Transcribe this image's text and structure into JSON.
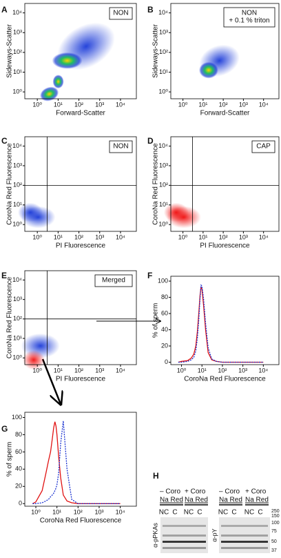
{
  "chart_data": [
    {
      "type": "scatter",
      "label": "A",
      "annotation": [
        "NON"
      ],
      "xlabel": "Forward-Scatter",
      "ylabel": "Sideways-Scatter",
      "log": true,
      "xlim": [
        0.25,
        58000
      ],
      "ylim": [
        0.45,
        30000
      ],
      "xticks": [
        {
          "value": 1,
          "label": "10⁰"
        },
        {
          "value": 10,
          "label": "10¹"
        },
        {
          "value": 100,
          "label": "10²"
        },
        {
          "value": 1000,
          "label": "10³"
        },
        {
          "value": 10000,
          "label": "10⁴"
        }
      ],
      "yticks": [
        {
          "value": 1,
          "label": "10⁰"
        },
        {
          "value": 10,
          "label": "10¹"
        },
        {
          "value": 100,
          "label": "10²"
        },
        {
          "value": 1000,
          "label": "10³"
        },
        {
          "value": 10000,
          "label": "10⁴"
        }
      ]
    },
    {
      "type": "scatter",
      "label": "B",
      "annotation": [
        "NON",
        "+ 0.1 % triton"
      ],
      "xlabel": "Forward-Scatter",
      "ylabel": "Sideways-Scatter",
      "log": true,
      "xlim": [
        0.25,
        58000
      ],
      "ylim": [
        0.45,
        30000
      ],
      "xticks": [
        {
          "value": 1,
          "label": "10⁰"
        },
        {
          "value": 10,
          "label": "10¹"
        },
        {
          "value": 100,
          "label": "10²"
        },
        {
          "value": 1000,
          "label": "10³"
        },
        {
          "value": 10000,
          "label": "10⁴"
        }
      ],
      "yticks": [
        {
          "value": 1,
          "label": "10⁰"
        },
        {
          "value": 10,
          "label": "10¹"
        },
        {
          "value": 100,
          "label": "10²"
        },
        {
          "value": 1000,
          "label": "10³"
        },
        {
          "value": 10000,
          "label": "10⁴"
        }
      ]
    },
    {
      "type": "scatter",
      "label": "C",
      "annotation": [
        "NON"
      ],
      "xlabel": "PI Fluorescence",
      "ylabel": "CoroNa Red Fluorescence",
      "log": true,
      "gates": [
        3,
        100
      ],
      "xlim": [
        0.25,
        58000
      ],
      "ylim": [
        0.45,
        30000
      ],
      "xticks": [
        {
          "value": 1,
          "label": "10⁰"
        },
        {
          "value": 10,
          "label": "10¹"
        },
        {
          "value": 100,
          "label": "10²"
        },
        {
          "value": 1000,
          "label": "10³"
        },
        {
          "value": 10000,
          "label": "10⁴"
        }
      ],
      "yticks": [
        {
          "value": 1,
          "label": "10⁰"
        },
        {
          "value": 10,
          "label": "10¹"
        },
        {
          "value": 100,
          "label": "10²"
        },
        {
          "value": 1000,
          "label": "10³"
        },
        {
          "value": 10000,
          "label": "10⁴"
        }
      ]
    },
    {
      "type": "scatter",
      "label": "D",
      "annotation": [
        "CAP"
      ],
      "xlabel": "PI Fluorescence",
      "ylabel": "CoroNa Red Fluorescence",
      "log": true,
      "gates": [
        3,
        100
      ],
      "xlim": [
        0.25,
        58000
      ],
      "ylim": [
        0.45,
        30000
      ],
      "xticks": [
        {
          "value": 1,
          "label": "10⁰"
        },
        {
          "value": 10,
          "label": "10¹"
        },
        {
          "value": 100,
          "label": "10²"
        },
        {
          "value": 1000,
          "label": "10³"
        },
        {
          "value": 10000,
          "label": "10⁴"
        }
      ],
      "yticks": [
        {
          "value": 1,
          "label": "10⁰"
        },
        {
          "value": 10,
          "label": "10¹"
        },
        {
          "value": 100,
          "label": "10²"
        },
        {
          "value": 1000,
          "label": "10³"
        },
        {
          "value": 10000,
          "label": "10⁴"
        }
      ]
    },
    {
      "type": "scatter",
      "label": "E",
      "annotation": [
        "Merged"
      ],
      "xlabel": "PI Fluorescence",
      "ylabel": "CoroNa Red Fluorescence",
      "log": true,
      "gates": [
        3,
        100
      ],
      "xlim": [
        0.25,
        58000
      ],
      "ylim": [
        0.45,
        30000
      ],
      "xticks": [
        {
          "value": 1,
          "label": "10⁰"
        },
        {
          "value": 10,
          "label": "10¹"
        },
        {
          "value": 100,
          "label": "10²"
        },
        {
          "value": 1000,
          "label": "10³"
        },
        {
          "value": 10000,
          "label": "10⁴"
        }
      ],
      "yticks": [
        {
          "value": 1,
          "label": "10⁰"
        },
        {
          "value": 10,
          "label": "10¹"
        },
        {
          "value": 100,
          "label": "10²"
        },
        {
          "value": 1000,
          "label": "10³"
        },
        {
          "value": 10000,
          "label": "10⁴"
        }
      ]
    },
    {
      "type": "line",
      "label": "F",
      "xlabel": "CoroNa Red Fluorescence",
      "ylabel": "% of sperm",
      "log": true,
      "xlim": [
        0.3,
        58000
      ],
      "ylim": [
        -3,
        106
      ],
      "xticks": [
        {
          "value": 1,
          "label": "10⁰"
        },
        {
          "value": 10,
          "label": "10¹"
        },
        {
          "value": 100,
          "label": "10²"
        },
        {
          "value": 1000,
          "label": "10³"
        },
        {
          "value": 10000,
          "label": "10⁴"
        }
      ],
      "yticks": [
        0,
        20,
        40,
        60,
        80,
        100
      ],
      "x": [
        0.7,
        1,
        2,
        3,
        4,
        5,
        6,
        7,
        8,
        9,
        10,
        12,
        15,
        20,
        30,
        50,
        100,
        1000,
        10000
      ],
      "series": [
        {
          "color": "#e01010",
          "style": "solid",
          "values": [
            0,
            1,
            2,
            5,
            10,
            20,
            38,
            60,
            82,
            93,
            90,
            70,
            40,
            12,
            3,
            1,
            0,
            0,
            0
          ]
        },
        {
          "color": "#1830d0",
          "style": "dotted",
          "values": [
            0,
            0,
            1,
            3,
            6,
            14,
            30,
            52,
            78,
            95,
            94,
            78,
            48,
            18,
            4,
            1,
            0,
            0,
            0
          ]
        }
      ]
    },
    {
      "type": "line",
      "label": "G",
      "xlabel": "CoroNa Red Fluorescence",
      "ylabel": "% of sperm",
      "log": true,
      "xlim": [
        0.3,
        58000
      ],
      "ylim": [
        -3,
        106
      ],
      "xticks": [
        {
          "value": 1,
          "label": "10⁰"
        },
        {
          "value": 10,
          "label": "10¹"
        },
        {
          "value": 100,
          "label": "10²"
        },
        {
          "value": 1000,
          "label": "10³"
        },
        {
          "value": 10000,
          "label": "10⁴"
        }
      ],
      "yticks": [
        0,
        20,
        40,
        60,
        80,
        100
      ],
      "x": [
        0.7,
        1,
        2,
        3,
        4,
        5,
        6,
        7,
        8,
        9,
        10,
        12,
        15,
        20,
        30,
        50,
        100,
        1000,
        10000
      ],
      "series": [
        {
          "color": "#e01010",
          "style": "solid",
          "values": [
            0,
            2,
            15,
            35,
            50,
            60,
            75,
            88,
            95,
            90,
            80,
            55,
            30,
            10,
            3,
            1,
            0,
            0,
            0
          ]
        },
        {
          "color": "#1830d0",
          "style": "dotted",
          "values": [
            0,
            0,
            1,
            3,
            5,
            8,
            10,
            12,
            15,
            18,
            22,
            35,
            70,
            96,
            40,
            5,
            0,
            0,
            0
          ]
        }
      ]
    }
  ],
  "blot": {
    "label": "H",
    "groups": [
      "– Coro",
      "+ Coro",
      "– Coro",
      "+ Coro"
    ],
    "sublabel": "Na Red",
    "lanes": [
      "NC",
      "C",
      "NC",
      "C",
      "NC",
      "C",
      "NC",
      "C"
    ],
    "antibodies": [
      "α-pPKAs",
      "α-pY"
    ],
    "markers": [
      "250",
      "150",
      "100",
      "75",
      "50",
      "37"
    ]
  }
}
